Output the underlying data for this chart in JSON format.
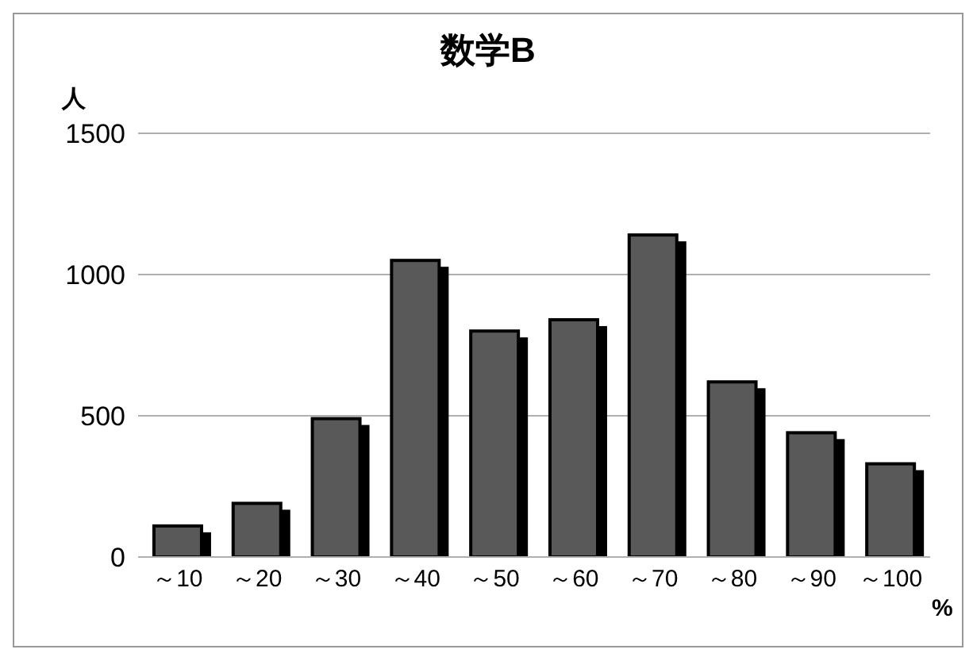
{
  "chart_data": {
    "type": "bar",
    "title": "数学B",
    "ylabel": "人",
    "xlabel": "%",
    "categories": [
      "～10",
      "～20",
      "～30",
      "～40",
      "～50",
      "～60",
      "～70",
      "～80",
      "～90",
      "～100"
    ],
    "values": [
      110,
      190,
      490,
      1050,
      800,
      840,
      1140,
      620,
      440,
      330
    ],
    "color": "#595959",
    "ylim": [
      0,
      1500
    ],
    "yticks": [
      0,
      500,
      1000,
      1500
    ],
    "grid": "y"
  }
}
